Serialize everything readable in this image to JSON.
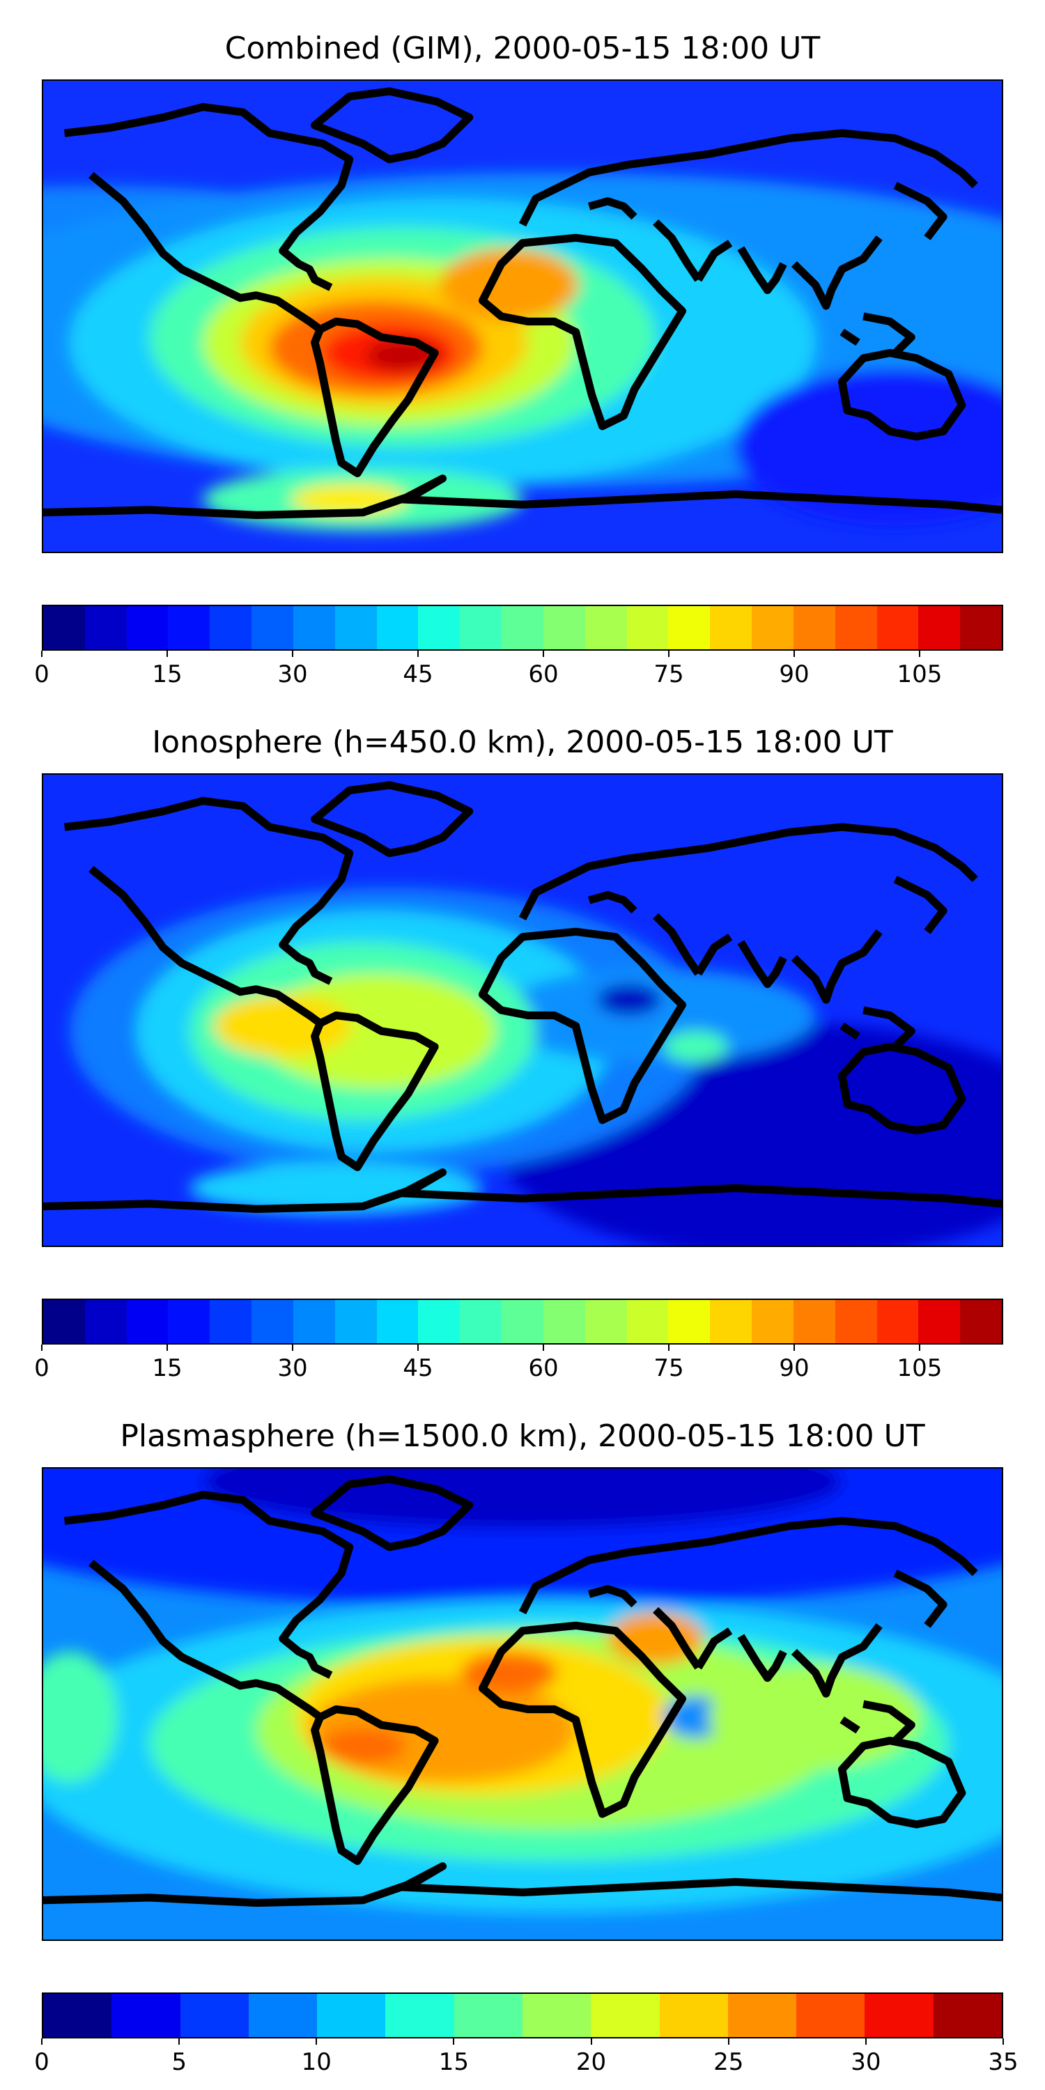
{
  "chart_data": [
    {
      "type": "heatmap",
      "map_type": "global filled-contour TEC map",
      "title": "Combined (GIM), 2000-05-15 18:00 UT",
      "projection": "PlateCarree",
      "colormap": "jet",
      "levels": [
        0,
        5,
        10,
        15,
        20,
        25,
        30,
        35,
        40,
        45,
        50,
        55,
        60,
        65,
        70,
        75,
        80,
        85,
        90,
        95,
        100,
        105,
        110,
        115
      ],
      "colorbar_ticks": [
        0,
        15,
        30,
        45,
        60,
        75,
        90,
        105
      ],
      "value_range": [
        0,
        115
      ],
      "features": [
        {
          "name": "South America / South Atlantic maximum",
          "lon": -45,
          "lat": -15,
          "value": 110
        },
        {
          "name": "West Africa / Atlantic secondary maximum",
          "lon": -5,
          "lat": 10,
          "value": 90
        },
        {
          "name": "Antarctic Peninsula enhancement",
          "lon": -60,
          "lat": -70,
          "value": 75
        },
        {
          "name": "Pacific / Australia low",
          "lon": 140,
          "lat": -35,
          "value": 10
        }
      ]
    },
    {
      "type": "heatmap",
      "map_type": "global filled-contour TEC map",
      "title": "Ionosphere  (h=450.0 km), 2000-05-15 18:00 UT",
      "projection": "PlateCarree",
      "colormap": "jet",
      "levels": [
        0,
        5,
        10,
        15,
        20,
        25,
        30,
        35,
        40,
        45,
        50,
        55,
        60,
        65,
        70,
        75,
        80,
        85,
        90,
        95,
        100,
        105,
        110,
        115
      ],
      "colorbar_ticks": [
        0,
        15,
        30,
        45,
        60,
        75,
        90,
        105
      ],
      "value_range": [
        0,
        115
      ],
      "features": [
        {
          "name": "South America maximum",
          "lon": -55,
          "lat": -10,
          "value": 78
        },
        {
          "name": "East Africa low",
          "lon": 45,
          "lat": 5,
          "value": 10
        },
        {
          "name": "Indian / Pacific Ocean low",
          "lon": 120,
          "lat": -40,
          "value": 3
        }
      ]
    },
    {
      "type": "heatmap",
      "map_type": "global filled-contour TEC map",
      "title": "Plasmasphere (h=1500.0 km), 2000-05-15 18:00 UT",
      "projection": "PlateCarree",
      "colormap": "jet",
      "levels": [
        0,
        2.5,
        5,
        7.5,
        10,
        12.5,
        15,
        17.5,
        20,
        22.5,
        25,
        27.5,
        30,
        32.5,
        35
      ],
      "colorbar_ticks": [
        0,
        5,
        10,
        15,
        20,
        25,
        30,
        35
      ],
      "value_range": [
        0,
        35
      ],
      "features": [
        {
          "name": "South America maximum",
          "lon": -40,
          "lat": -20,
          "value": 30
        },
        {
          "name": "North Africa maximum",
          "lon": 0,
          "lat": 20,
          "value": 30
        },
        {
          "name": "Arabian Peninsula maximum",
          "lon": 45,
          "lat": 25,
          "value": 29
        },
        {
          "name": "Northern hemisphere low",
          "lon": 60,
          "lat": 75,
          "value": 2
        }
      ]
    }
  ]
}
